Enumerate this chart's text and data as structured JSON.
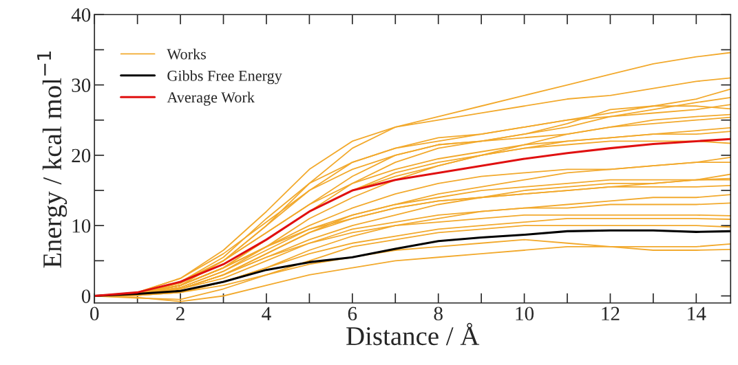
{
  "chart_data": {
    "type": "line",
    "xlabel": "Distance / Å",
    "ylabel": "Energy / kcal mol$^{−1}$",
    "x": [
      0,
      1,
      2,
      3,
      4,
      5,
      6,
      7,
      8,
      9,
      10,
      11,
      12,
      13,
      14,
      14.8
    ],
    "xlim": [
      0,
      14.8
    ],
    "ylim": [
      -1,
      40
    ],
    "xticks": [
      0,
      {
        "value": 1,
        "label": null
      },
      2,
      {
        "value": 3,
        "label": null
      },
      4,
      {
        "value": 5,
        "label": null
      },
      6,
      {
        "value": 7,
        "label": null
      },
      8,
      {
        "value": 9,
        "label": null
      },
      10,
      {
        "value": 11,
        "label": null
      },
      12,
      {
        "value": 13,
        "label": null
      },
      14
    ],
    "yticks": [
      0,
      {
        "value": 5,
        "label": null
      },
      10,
      {
        "value": 15,
        "label": null
      },
      20,
      {
        "value": 25,
        "label": null
      },
      30,
      {
        "value": 35,
        "label": null
      },
      40
    ],
    "grid": false,
    "legend": "top left",
    "marker": "none",
    "line_style": "solid",
    "series": [
      {
        "name": "Works",
        "color": "#f2a92c",
        "values": [
          0,
          0.3,
          1.5,
          5,
          10,
          16,
          21,
          24,
          25.5,
          27,
          28.5,
          30,
          31.5,
          33,
          34,
          34.6
        ]
      },
      {
        "color": "#f2a92c",
        "values": [
          0,
          0.5,
          2.5,
          6.5,
          12,
          18,
          22,
          24,
          25,
          26,
          27,
          28,
          28.5,
          29.5,
          30.5,
          31
        ]
      },
      {
        "color": "#f2a92c",
        "values": [
          0,
          0.3,
          2,
          5,
          10,
          15,
          19,
          21,
          22.5,
          23,
          24,
          25,
          26,
          27,
          28,
          29.4
        ]
      },
      {
        "color": "#f2a92c",
        "values": [
          0,
          0.2,
          1.5,
          4,
          8,
          12,
          16,
          19,
          21,
          22,
          23,
          24,
          25.5,
          26.5,
          27.5,
          28.2
        ]
      },
      {
        "color": "#f2a92c",
        "values": [
          0,
          0.4,
          2,
          5.5,
          11,
          16,
          19,
          21,
          22,
          23,
          24,
          25,
          25.5,
          26,
          26.5,
          27.2
        ]
      },
      {
        "color": "#f2a92c",
        "values": [
          0,
          0.3,
          1.8,
          5,
          9,
          13,
          17,
          20,
          21.5,
          22,
          23,
          24.5,
          26.5,
          27,
          27,
          26.6
        ]
      },
      {
        "color": "#f2a92c",
        "values": [
          0,
          0.2,
          1.2,
          3.5,
          7,
          11,
          14,
          16.5,
          18.5,
          20,
          21.5,
          23,
          24,
          25,
          25.5,
          25.8
        ]
      },
      {
        "color": "#f2a92c",
        "values": [
          0,
          0.5,
          2.5,
          6,
          10.5,
          15,
          18,
          20,
          21.5,
          22,
          22.5,
          23,
          24,
          24.5,
          25,
          25.4
        ]
      },
      {
        "color": "#f2a92c",
        "values": [
          0,
          0.3,
          1.5,
          4,
          8,
          12,
          15,
          17.5,
          19,
          20,
          21,
          22,
          22.5,
          23,
          23.5,
          23.9
        ]
      },
      {
        "color": "#f2a92c",
        "values": [
          0,
          0.4,
          2,
          5,
          9,
          13,
          16,
          18,
          19.5,
          20.5,
          21.5,
          22,
          22.5,
          23,
          23,
          23.4
        ]
      },
      {
        "color": "#f2a92c",
        "values": [
          0,
          0.3,
          1.5,
          4,
          8,
          12,
          15,
          17,
          18.5,
          20,
          21,
          21.5,
          22,
          22,
          22,
          21.7
        ]
      },
      {
        "color": "#f2a92c",
        "values": [
          0,
          0.2,
          1,
          3,
          6,
          9,
          11.5,
          13,
          14.5,
          15.5,
          16.5,
          17.5,
          18,
          18.5,
          19,
          19.7
        ]
      },
      {
        "color": "#f2a92c",
        "values": [
          0,
          0.3,
          1.5,
          4,
          7,
          10,
          12.5,
          14.5,
          16,
          17,
          17.5,
          18,
          18,
          18.5,
          19,
          19
        ]
      },
      {
        "color": "#f2a92c",
        "values": [
          0,
          0.2,
          1,
          3,
          6,
          9,
          11,
          12.5,
          13.5,
          14,
          14.5,
          15,
          15.5,
          16,
          16.5,
          17.3
        ]
      },
      {
        "color": "#f2a92c",
        "values": [
          0,
          0.3,
          1.2,
          3.5,
          6.5,
          9.5,
          11.5,
          13,
          14,
          15,
          15.5,
          16,
          16.5,
          16.5,
          16.5,
          16.7
        ]
      },
      {
        "color": "#f2a92c",
        "values": [
          0,
          0.2,
          1,
          3,
          5.5,
          8,
          10,
          11.5,
          13,
          14,
          15,
          15.5,
          16,
          16,
          16.5,
          16.5
        ]
      },
      {
        "color": "#f2a92c",
        "values": [
          0,
          0.4,
          1.5,
          4,
          7,
          9.5,
          11,
          12.5,
          13.5,
          14,
          14.5,
          15,
          15.5,
          15.5,
          15.5,
          15.7
        ]
      },
      {
        "color": "#f2a92c",
        "values": [
          0,
          0.1,
          0.5,
          2,
          4,
          6.5,
          8.5,
          10,
          11,
          12,
          12.5,
          13,
          13.5,
          14,
          14,
          14.4
        ]
      },
      {
        "color": "#f2a92c",
        "values": [
          0,
          0.2,
          1,
          2.5,
          5,
          7.5,
          9.5,
          10.5,
          11.5,
          12,
          12.5,
          12.5,
          13,
          13,
          13,
          13.2
        ]
      },
      {
        "color": "#f2a92c",
        "values": [
          0,
          0.2,
          1,
          3,
          5.5,
          7.5,
          9,
          10,
          10.5,
          11,
          11.5,
          11.5,
          11.5,
          11.5,
          11.5,
          11.4
        ]
      },
      {
        "color": "#f2a92c",
        "values": [
          0,
          0.1,
          0.5,
          2,
          4,
          6,
          7.5,
          8.5,
          9.5,
          10,
          10.5,
          11,
          11,
          11,
          11,
          10.9
        ]
      },
      {
        "color": "#f2a92c",
        "values": [
          0,
          -0.3,
          -0.5,
          1,
          3,
          5,
          7,
          8,
          9,
          9.5,
          10,
          10,
          10,
          10,
          10,
          9.8
        ]
      },
      {
        "color": "#f2a92c",
        "values": [
          0,
          0.1,
          0.5,
          1.5,
          3,
          4.5,
          5.5,
          6.5,
          7,
          7.5,
          8,
          7.5,
          7,
          7,
          7,
          7.4
        ]
      },
      {
        "color": "#f2a92c",
        "values": [
          0,
          -0.2,
          -0.8,
          0,
          1.5,
          3,
          4,
          5,
          5.5,
          6,
          6.5,
          7,
          7,
          6.5,
          6.5,
          6.6
        ]
      },
      {
        "name": "Gibbs Free Energy",
        "color": "#000000",
        "values": [
          0,
          0.3,
          0.7,
          2,
          3.7,
          4.8,
          5.5,
          6.7,
          7.8,
          8.3,
          8.7,
          9.2,
          9.3,
          9.3,
          9.1,
          9.2
        ]
      },
      {
        "name": "Average Work",
        "color": "#e01010",
        "values": [
          0,
          0.5,
          2,
          4.5,
          8,
          12,
          15,
          16.5,
          17.5,
          18.5,
          19.5,
          20.3,
          21,
          21.6,
          22,
          22.3
        ]
      }
    ]
  }
}
